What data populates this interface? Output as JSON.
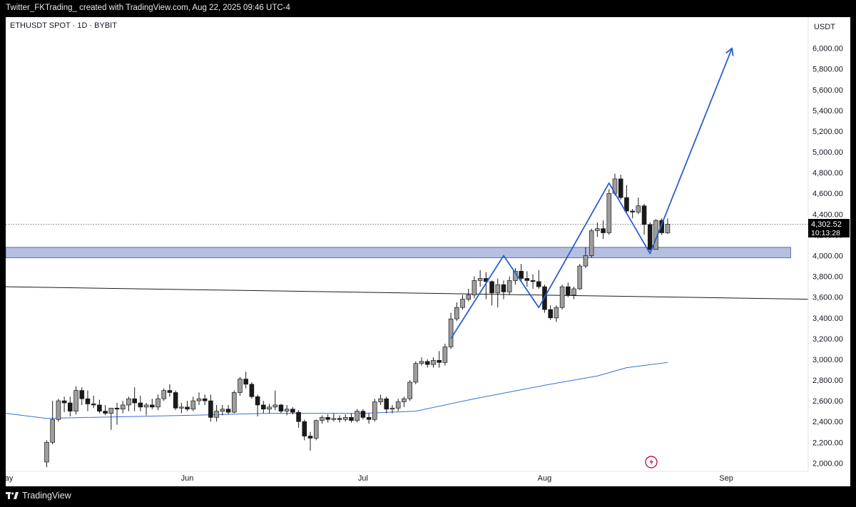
{
  "header": {
    "attribution": "Twitter_FKTrading_ created with TradingView.com, Aug 22, 2025 09:46 UTC-4"
  },
  "footer": {
    "brand": "TradingView"
  },
  "symbol_label": "ETHUSDT SPOT · 1D · BYBIT",
  "currency_label": "USDT",
  "price_badge": {
    "price": "4,302.52",
    "countdown": "10:13:28"
  },
  "colors": {
    "candle_body_up": "#9e9e9e",
    "candle_body_down": "#1a1a1a",
    "wick": "#1a1a1a",
    "zone_fill": "#b5bfe0",
    "zone_stroke": "#3a4d9a",
    "path": "#2a5fd0",
    "ma": "#3a6fd8",
    "trendline": "#1a1a1a"
  },
  "chart_data": {
    "type": "candlestick",
    "symbol": "ETHUSDT SPOT · 1D · BYBIT",
    "y_unit": "USDT",
    "y_ticks": [
      2000,
      2200,
      2400,
      2600,
      2800,
      3000,
      3200,
      3400,
      3600,
      3800,
      4000,
      4200,
      4400,
      4600,
      4800,
      5000,
      5200,
      5400,
      5600,
      5800,
      6000
    ],
    "y_tick_labels": [
      "2,000.00",
      "2,200.00",
      "2,400.00",
      "2,600.00",
      "2,800.00",
      "3,000.00",
      "3,200.00",
      "3,400.00",
      "3,600.00",
      "3,800.00",
      "4,000.00",
      "4,200.00",
      "4,400.00",
      "4,600.00",
      "4,800.00",
      "5,000.00",
      "5,200.00",
      "5,400.00",
      "5,600.00",
      "5,800.00",
      "6,000.00"
    ],
    "y_range": [
      1920,
      6300
    ],
    "x_range": [
      "2025-05-01",
      "2025-09-15"
    ],
    "x_ticks": [
      {
        "date": "2025-05-01",
        "label": "May"
      },
      {
        "date": "2025-06-01",
        "label": "Jun"
      },
      {
        "date": "2025-07-01",
        "label": "Jul"
      },
      {
        "date": "2025-08-01",
        "label": "Aug"
      },
      {
        "date": "2025-09-01",
        "label": "Sep"
      }
    ],
    "candles": [
      {
        "d": "2025-05-08",
        "o": 2010,
        "h": 2220,
        "l": 1960,
        "c": 2200
      },
      {
        "d": "2025-05-09",
        "o": 2200,
        "h": 2600,
        "l": 2180,
        "c": 2420
      },
      {
        "d": "2025-05-10",
        "o": 2420,
        "h": 2620,
        "l": 2400,
        "c": 2600
      },
      {
        "d": "2025-05-11",
        "o": 2600,
        "h": 2640,
        "l": 2490,
        "c": 2580
      },
      {
        "d": "2025-05-12",
        "o": 2580,
        "h": 2640,
        "l": 2450,
        "c": 2500
      },
      {
        "d": "2025-05-13",
        "o": 2500,
        "h": 2740,
        "l": 2470,
        "c": 2700
      },
      {
        "d": "2025-05-14",
        "o": 2700,
        "h": 2730,
        "l": 2560,
        "c": 2620
      },
      {
        "d": "2025-05-15",
        "o": 2620,
        "h": 2700,
        "l": 2500,
        "c": 2570
      },
      {
        "d": "2025-05-16",
        "o": 2570,
        "h": 2650,
        "l": 2530,
        "c": 2560
      },
      {
        "d": "2025-05-17",
        "o": 2560,
        "h": 2610,
        "l": 2480,
        "c": 2500
      },
      {
        "d": "2025-05-18",
        "o": 2500,
        "h": 2560,
        "l": 2460,
        "c": 2480
      },
      {
        "d": "2025-05-19",
        "o": 2480,
        "h": 2530,
        "l": 2320,
        "c": 2530
      },
      {
        "d": "2025-05-20",
        "o": 2530,
        "h": 2580,
        "l": 2370,
        "c": 2520
      },
      {
        "d": "2025-05-21",
        "o": 2520,
        "h": 2600,
        "l": 2480,
        "c": 2560
      },
      {
        "d": "2025-05-22",
        "o": 2560,
        "h": 2640,
        "l": 2500,
        "c": 2620
      },
      {
        "d": "2025-05-23",
        "o": 2620,
        "h": 2730,
        "l": 2500,
        "c": 2580
      },
      {
        "d": "2025-05-24",
        "o": 2580,
        "h": 2650,
        "l": 2500,
        "c": 2540
      },
      {
        "d": "2025-05-25",
        "o": 2540,
        "h": 2580,
        "l": 2460,
        "c": 2560
      },
      {
        "d": "2025-05-26",
        "o": 2560,
        "h": 2620,
        "l": 2520,
        "c": 2540
      },
      {
        "d": "2025-05-27",
        "o": 2540,
        "h": 2660,
        "l": 2510,
        "c": 2620
      },
      {
        "d": "2025-05-28",
        "o": 2620,
        "h": 2720,
        "l": 2600,
        "c": 2700
      },
      {
        "d": "2025-05-29",
        "o": 2700,
        "h": 2760,
        "l": 2640,
        "c": 2680
      },
      {
        "d": "2025-05-30",
        "o": 2680,
        "h": 2700,
        "l": 2510,
        "c": 2530
      },
      {
        "d": "2025-05-31",
        "o": 2530,
        "h": 2580,
        "l": 2480,
        "c": 2540
      },
      {
        "d": "2025-06-01",
        "o": 2540,
        "h": 2600,
        "l": 2500,
        "c": 2520
      },
      {
        "d": "2025-06-02",
        "o": 2520,
        "h": 2640,
        "l": 2500,
        "c": 2600
      },
      {
        "d": "2025-06-03",
        "o": 2600,
        "h": 2680,
        "l": 2560,
        "c": 2620
      },
      {
        "d": "2025-06-04",
        "o": 2620,
        "h": 2660,
        "l": 2560,
        "c": 2600
      },
      {
        "d": "2025-06-05",
        "o": 2600,
        "h": 2660,
        "l": 2400,
        "c": 2440
      },
      {
        "d": "2025-06-06",
        "o": 2440,
        "h": 2560,
        "l": 2400,
        "c": 2500
      },
      {
        "d": "2025-06-07",
        "o": 2500,
        "h": 2560,
        "l": 2460,
        "c": 2520
      },
      {
        "d": "2025-06-08",
        "o": 2520,
        "h": 2560,
        "l": 2470,
        "c": 2490
      },
      {
        "d": "2025-06-09",
        "o": 2490,
        "h": 2700,
        "l": 2480,
        "c": 2680
      },
      {
        "d": "2025-06-10",
        "o": 2680,
        "h": 2830,
        "l": 2650,
        "c": 2810
      },
      {
        "d": "2025-06-11",
        "o": 2810,
        "h": 2880,
        "l": 2720,
        "c": 2760
      },
      {
        "d": "2025-06-12",
        "o": 2760,
        "h": 2780,
        "l": 2620,
        "c": 2640
      },
      {
        "d": "2025-06-13",
        "o": 2640,
        "h": 2660,
        "l": 2450,
        "c": 2560
      },
      {
        "d": "2025-06-14",
        "o": 2560,
        "h": 2600,
        "l": 2480,
        "c": 2520
      },
      {
        "d": "2025-06-15",
        "o": 2520,
        "h": 2570,
        "l": 2480,
        "c": 2540
      },
      {
        "d": "2025-06-16",
        "o": 2540,
        "h": 2700,
        "l": 2510,
        "c": 2560
      },
      {
        "d": "2025-06-17",
        "o": 2560,
        "h": 2570,
        "l": 2480,
        "c": 2500
      },
      {
        "d": "2025-06-18",
        "o": 2500,
        "h": 2560,
        "l": 2460,
        "c": 2520
      },
      {
        "d": "2025-06-19",
        "o": 2520,
        "h": 2540,
        "l": 2470,
        "c": 2490
      },
      {
        "d": "2025-06-20",
        "o": 2490,
        "h": 2510,
        "l": 2340,
        "c": 2400
      },
      {
        "d": "2025-06-21",
        "o": 2400,
        "h": 2420,
        "l": 2220,
        "c": 2260
      },
      {
        "d": "2025-06-22",
        "o": 2260,
        "h": 2300,
        "l": 2120,
        "c": 2240
      },
      {
        "d": "2025-06-23",
        "o": 2240,
        "h": 2420,
        "l": 2220,
        "c": 2410
      },
      {
        "d": "2025-06-24",
        "o": 2410,
        "h": 2460,
        "l": 2380,
        "c": 2440
      },
      {
        "d": "2025-06-25",
        "o": 2440,
        "h": 2470,
        "l": 2390,
        "c": 2420
      },
      {
        "d": "2025-06-26",
        "o": 2420,
        "h": 2480,
        "l": 2400,
        "c": 2430
      },
      {
        "d": "2025-06-27",
        "o": 2430,
        "h": 2460,
        "l": 2390,
        "c": 2420
      },
      {
        "d": "2025-06-28",
        "o": 2420,
        "h": 2470,
        "l": 2400,
        "c": 2440
      },
      {
        "d": "2025-06-29",
        "o": 2440,
        "h": 2480,
        "l": 2390,
        "c": 2410
      },
      {
        "d": "2025-06-30",
        "o": 2410,
        "h": 2520,
        "l": 2390,
        "c": 2500
      },
      {
        "d": "2025-07-01",
        "o": 2500,
        "h": 2520,
        "l": 2420,
        "c": 2440
      },
      {
        "d": "2025-07-02",
        "o": 2440,
        "h": 2480,
        "l": 2380,
        "c": 2420
      },
      {
        "d": "2025-07-03",
        "o": 2420,
        "h": 2620,
        "l": 2400,
        "c": 2590
      },
      {
        "d": "2025-07-04",
        "o": 2590,
        "h": 2660,
        "l": 2560,
        "c": 2620
      },
      {
        "d": "2025-07-05",
        "o": 2620,
        "h": 2640,
        "l": 2480,
        "c": 2520
      },
      {
        "d": "2025-07-06",
        "o": 2520,
        "h": 2560,
        "l": 2480,
        "c": 2530
      },
      {
        "d": "2025-07-07",
        "o": 2530,
        "h": 2620,
        "l": 2500,
        "c": 2590
      },
      {
        "d": "2025-07-08",
        "o": 2590,
        "h": 2640,
        "l": 2540,
        "c": 2620
      },
      {
        "d": "2025-07-09",
        "o": 2620,
        "h": 2800,
        "l": 2600,
        "c": 2780
      },
      {
        "d": "2025-07-10",
        "o": 2780,
        "h": 2980,
        "l": 2760,
        "c": 2960
      },
      {
        "d": "2025-07-11",
        "o": 2960,
        "h": 3020,
        "l": 2940,
        "c": 2980
      },
      {
        "d": "2025-07-12",
        "o": 2980,
        "h": 3000,
        "l": 2920,
        "c": 2950
      },
      {
        "d": "2025-07-13",
        "o": 2950,
        "h": 3020,
        "l": 2920,
        "c": 2990
      },
      {
        "d": "2025-07-14",
        "o": 2990,
        "h": 3080,
        "l": 2920,
        "c": 2970
      },
      {
        "d": "2025-07-15",
        "o": 2970,
        "h": 3150,
        "l": 2940,
        "c": 3120
      },
      {
        "d": "2025-07-16",
        "o": 3120,
        "h": 3450,
        "l": 3100,
        "c": 3390
      },
      {
        "d": "2025-07-17",
        "o": 3390,
        "h": 3550,
        "l": 3370,
        "c": 3500
      },
      {
        "d": "2025-07-18",
        "o": 3500,
        "h": 3620,
        "l": 3480,
        "c": 3580
      },
      {
        "d": "2025-07-19",
        "o": 3580,
        "h": 3680,
        "l": 3560,
        "c": 3620
      },
      {
        "d": "2025-07-20",
        "o": 3620,
        "h": 3800,
        "l": 3590,
        "c": 3760
      },
      {
        "d": "2025-07-21",
        "o": 3760,
        "h": 3860,
        "l": 3700,
        "c": 3780
      },
      {
        "d": "2025-07-22",
        "o": 3780,
        "h": 3840,
        "l": 3580,
        "c": 3750
      },
      {
        "d": "2025-07-23",
        "o": 3750,
        "h": 3760,
        "l": 3520,
        "c": 3640
      },
      {
        "d": "2025-07-24",
        "o": 3640,
        "h": 3780,
        "l": 3500,
        "c": 3720
      },
      {
        "d": "2025-07-25",
        "o": 3720,
        "h": 3760,
        "l": 3580,
        "c": 3650
      },
      {
        "d": "2025-07-26",
        "o": 3650,
        "h": 3800,
        "l": 3620,
        "c": 3760
      },
      {
        "d": "2025-07-27",
        "o": 3760,
        "h": 3880,
        "l": 3720,
        "c": 3850
      },
      {
        "d": "2025-07-28",
        "o": 3850,
        "h": 3920,
        "l": 3750,
        "c": 3780
      },
      {
        "d": "2025-07-29",
        "o": 3780,
        "h": 3850,
        "l": 3700,
        "c": 3760
      },
      {
        "d": "2025-07-30",
        "o": 3760,
        "h": 3820,
        "l": 3680,
        "c": 3750
      },
      {
        "d": "2025-07-31",
        "o": 3750,
        "h": 3860,
        "l": 3680,
        "c": 3700
      },
      {
        "d": "2025-08-01",
        "o": 3700,
        "h": 3720,
        "l": 3450,
        "c": 3480
      },
      {
        "d": "2025-08-02",
        "o": 3480,
        "h": 3520,
        "l": 3380,
        "c": 3400
      },
      {
        "d": "2025-08-03",
        "o": 3400,
        "h": 3520,
        "l": 3360,
        "c": 3500
      },
      {
        "d": "2025-08-04",
        "o": 3500,
        "h": 3720,
        "l": 3480,
        "c": 3700
      },
      {
        "d": "2025-08-05",
        "o": 3700,
        "h": 3740,
        "l": 3600,
        "c": 3620
      },
      {
        "d": "2025-08-06",
        "o": 3620,
        "h": 3700,
        "l": 3580,
        "c": 3680
      },
      {
        "d": "2025-08-07",
        "o": 3680,
        "h": 3920,
        "l": 3670,
        "c": 3900
      },
      {
        "d": "2025-08-08",
        "o": 3900,
        "h": 4080,
        "l": 3880,
        "c": 4000
      },
      {
        "d": "2025-08-09",
        "o": 4000,
        "h": 4260,
        "l": 3980,
        "c": 4240
      },
      {
        "d": "2025-08-10",
        "o": 4240,
        "h": 4320,
        "l": 4180,
        "c": 4260
      },
      {
        "d": "2025-08-11",
        "o": 4260,
        "h": 4340,
        "l": 4160,
        "c": 4220
      },
      {
        "d": "2025-08-12",
        "o": 4220,
        "h": 4640,
        "l": 4200,
        "c": 4600
      },
      {
        "d": "2025-08-13",
        "o": 4600,
        "h": 4790,
        "l": 4580,
        "c": 4740
      },
      {
        "d": "2025-08-14",
        "o": 4740,
        "h": 4780,
        "l": 4540,
        "c": 4560
      },
      {
        "d": "2025-08-15",
        "o": 4560,
        "h": 4680,
        "l": 4420,
        "c": 4430
      },
      {
        "d": "2025-08-16",
        "o": 4430,
        "h": 4450,
        "l": 4360,
        "c": 4420
      },
      {
        "d": "2025-08-17",
        "o": 4420,
        "h": 4560,
        "l": 4400,
        "c": 4480
      },
      {
        "d": "2025-08-18",
        "o": 4480,
        "h": 4500,
        "l": 4200,
        "c": 4300
      },
      {
        "d": "2025-08-19",
        "o": 4300,
        "h": 4320,
        "l": 4050,
        "c": 4060
      },
      {
        "d": "2025-08-20",
        "o": 4060,
        "h": 4350,
        "l": 4070,
        "c": 4340
      },
      {
        "d": "2025-08-21",
        "o": 4340,
        "h": 4360,
        "l": 4200,
        "c": 4220
      },
      {
        "d": "2025-08-22",
        "o": 4220,
        "h": 4360,
        "l": 4210,
        "c": 4302.52
      }
    ],
    "moving_average": [
      {
        "d": "2025-05-01",
        "v": 2480
      },
      {
        "d": "2025-05-08",
        "v": 2430
      },
      {
        "d": "2025-05-15",
        "v": 2440
      },
      {
        "d": "2025-06-01",
        "v": 2460
      },
      {
        "d": "2025-06-15",
        "v": 2480
      },
      {
        "d": "2025-07-01",
        "v": 2480
      },
      {
        "d": "2025-07-10",
        "v": 2500
      },
      {
        "d": "2025-07-20",
        "v": 2620
      },
      {
        "d": "2025-08-01",
        "v": 2750
      },
      {
        "d": "2025-08-10",
        "v": 2840
      },
      {
        "d": "2025-08-15",
        "v": 2920
      },
      {
        "d": "2025-08-22",
        "v": 2970
      }
    ],
    "trendline": [
      {
        "d": "2025-05-01",
        "v": 3700
      },
      {
        "d": "2025-09-15",
        "v": 3580
      }
    ],
    "zone": {
      "from": "2025-05-01",
      "to": "2025-09-12",
      "low": 3980,
      "high": 4080
    },
    "projection_path": [
      {
        "d": "2025-07-16",
        "v": 3200
      },
      {
        "d": "2025-07-25",
        "v": 4000
      },
      {
        "d": "2025-07-31",
        "v": 3500
      },
      {
        "d": "2025-08-12",
        "v": 4700
      },
      {
        "d": "2025-08-19",
        "v": 4020
      },
      {
        "d": "2025-09-02",
        "v": 6000
      }
    ],
    "current_price": 4302.52
  }
}
